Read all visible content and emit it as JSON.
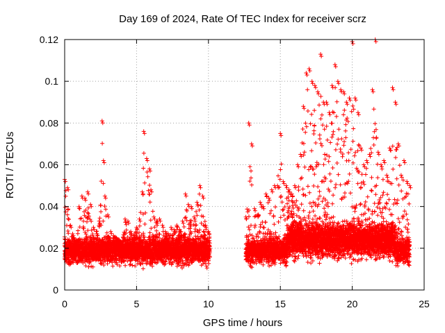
{
  "chart_data": {
    "type": "scatter",
    "title": "Day 169 of 2024, Rate Of TEC Index for receiver scrz",
    "xlabel": "GPS time / hours",
    "ylabel": "ROTI / TECUs",
    "xlim": [
      0,
      25
    ],
    "ylim": [
      0,
      0.12
    ],
    "xticks": [
      0,
      5,
      10,
      15,
      20,
      25
    ],
    "yticks": [
      0,
      0.02,
      0.04,
      0.06,
      0.08,
      0.1,
      0.12
    ],
    "grid": true,
    "marker": "+",
    "color": "#ff0000",
    "data_gap_hours": [
      10.1,
      12.6
    ],
    "series": [
      {
        "name": "ROTI",
        "x": [
          0.0,
          0.2,
          0.4,
          0.6,
          0.8,
          1.0,
          1.2,
          1.4,
          1.6,
          1.8,
          2.0,
          2.2,
          2.4,
          2.6,
          2.7,
          2.8,
          3.0,
          3.2,
          3.4,
          3.6,
          3.8,
          4.0,
          4.2,
          4.4,
          4.6,
          4.8,
          5.0,
          5.2,
          5.4,
          5.5,
          5.7,
          5.9,
          6.0,
          6.2,
          6.4,
          6.6,
          6.8,
          7.0,
          7.2,
          7.4,
          7.6,
          7.8,
          8.0,
          8.2,
          8.4,
          8.6,
          8.8,
          9.0,
          9.2,
          9.4,
          9.6,
          9.8,
          10.0,
          12.6,
          12.8,
          13.0,
          13.2,
          13.4,
          13.6,
          13.8,
          14.0,
          14.2,
          14.4,
          14.6,
          14.8,
          15.0,
          15.2,
          15.4,
          15.6,
          15.8,
          16.0,
          16.2,
          16.4,
          16.6,
          16.8,
          17.0,
          17.2,
          17.4,
          17.6,
          17.8,
          18.0,
          18.2,
          18.4,
          18.6,
          18.8,
          19.0,
          19.2,
          19.4,
          19.6,
          19.8,
          20.0,
          20.2,
          20.4,
          20.6,
          20.8,
          21.0,
          21.2,
          21.4,
          21.6,
          21.8,
          22.0,
          22.2,
          22.4,
          22.6,
          22.8,
          23.0,
          23.2,
          23.4,
          23.6,
          23.8,
          24.0
        ],
        "y": [
          0.053,
          0.049,
          0.031,
          0.026,
          0.024,
          0.04,
          0.045,
          0.044,
          0.047,
          0.041,
          0.03,
          0.028,
          0.033,
          0.081,
          0.062,
          0.045,
          0.036,
          0.028,
          0.026,
          0.025,
          0.024,
          0.022,
          0.034,
          0.033,
          0.028,
          0.026,
          0.03,
          0.034,
          0.047,
          0.076,
          0.063,
          0.058,
          0.048,
          0.035,
          0.033,
          0.034,
          0.031,
          0.028,
          0.027,
          0.03,
          0.029,
          0.031,
          0.029,
          0.033,
          0.046,
          0.041,
          0.04,
          0.035,
          0.042,
          0.05,
          0.045,
          0.031,
          0.028,
          0.035,
          0.08,
          0.07,
          0.039,
          0.036,
          0.042,
          0.04,
          0.046,
          0.044,
          0.048,
          0.05,
          0.05,
          0.075,
          0.052,
          0.05,
          0.048,
          0.046,
          0.05,
          0.06,
          0.065,
          0.088,
          0.104,
          0.106,
          0.1,
          0.098,
          0.095,
          0.113,
          0.09,
          0.09,
          0.085,
          0.098,
          0.108,
          0.1,
          0.096,
          0.095,
          0.09,
          0.092,
          0.119,
          0.092,
          0.085,
          0.068,
          0.06,
          0.062,
          0.065,
          0.096,
          0.12,
          0.066,
          0.06,
          0.062,
          0.055,
          0.068,
          0.097,
          0.09,
          0.07,
          0.055,
          0.062,
          0.052,
          0.05
        ]
      }
    ]
  }
}
